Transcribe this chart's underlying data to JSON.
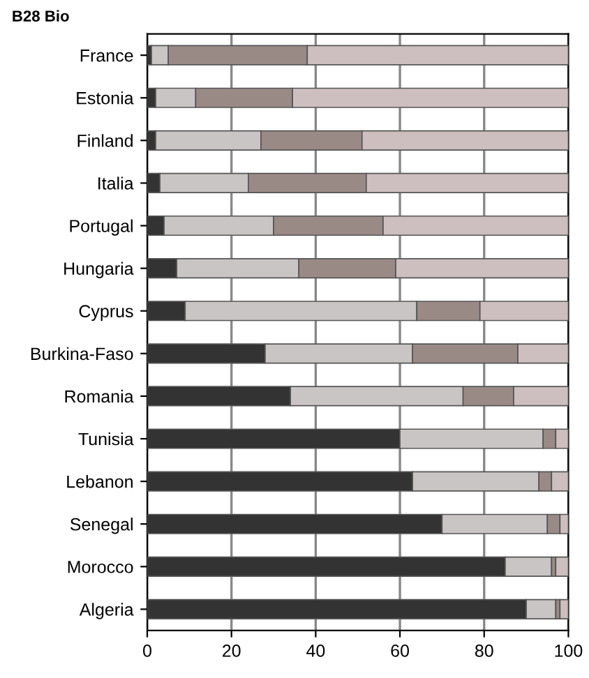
{
  "chart_data": {
    "type": "bar",
    "orientation": "horizontal",
    "stacked": true,
    "title": "B28 Bio",
    "categories": [
      "France",
      "Estonia",
      "Finland",
      "Italia",
      "Portugal",
      "Hungaria",
      "Cyprus",
      "Burkina-Faso",
      "Romania",
      "Tunisia",
      "Lebanon",
      "Senegal",
      "Morocco",
      "Algeria"
    ],
    "series": [
      {
        "color": "#333333",
        "values": [
          1,
          2,
          2,
          3,
          4,
          7,
          9,
          28,
          34,
          60,
          63,
          70,
          85,
          90
        ]
      },
      {
        "color": "#c9c5c5",
        "values": [
          4,
          9.5,
          25,
          21,
          26,
          29,
          55,
          35,
          41,
          34,
          30,
          25,
          11,
          7
        ]
      },
      {
        "color": "#9a8a86",
        "values": [
          33,
          23,
          24,
          28,
          26,
          23,
          15,
          25,
          12,
          3,
          3,
          3,
          1,
          1
        ]
      },
      {
        "color": "#cdbfbf",
        "values": [
          62,
          65.5,
          49,
          48,
          44,
          41,
          21,
          12,
          13,
          3,
          4,
          2,
          3,
          2
        ]
      }
    ],
    "xlim": [
      0,
      100
    ],
    "xticks": [
      0,
      20,
      40,
      60,
      80,
      100
    ],
    "grid": "x",
    "legend": false
  }
}
